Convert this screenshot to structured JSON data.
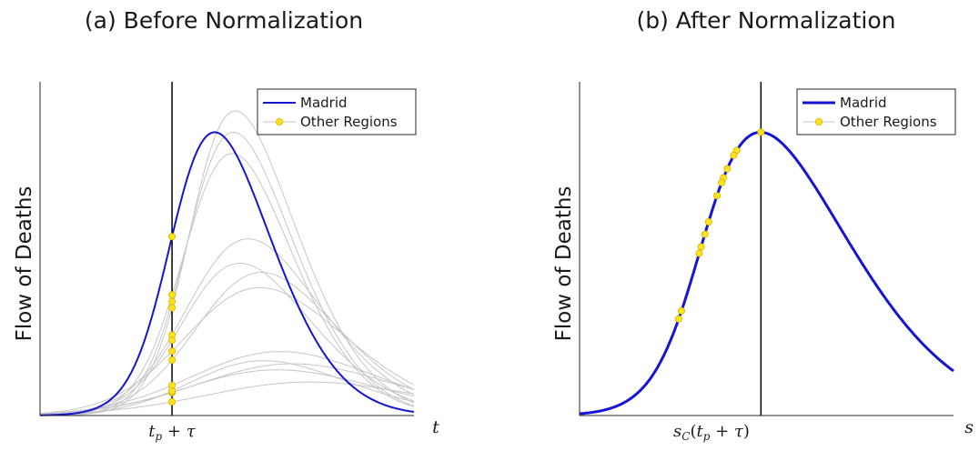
{
  "chart_data": [
    {
      "type": "line",
      "title": "(a) Before Normalization",
      "ylabel": "Flow of Deaths",
      "xlabel": "t",
      "xtick_label": "t_p + τ",
      "legend": {
        "placement": "top-right",
        "entries": [
          "Madrid",
          "Other Regions"
        ]
      },
      "colors": {
        "madrid": "#1414d2",
        "others": "#c6c6c6",
        "markers": "#ffe21a",
        "marker_edge": "#d4b400",
        "vline": "#000000"
      },
      "madrid": {
        "mu": 0.36,
        "sigma": 0.21,
        "skew": 2.0,
        "peak": 0.93
      },
      "others": [
        {
          "mu": 0.41,
          "sigma": 0.225,
          "skew": 2.2,
          "peak": 1.0
        },
        {
          "mu": 0.405,
          "sigma": 0.22,
          "skew": 2.0,
          "peak": 0.93
        },
        {
          "mu": 0.4,
          "sigma": 0.22,
          "skew": 1.8,
          "peak": 0.86
        },
        {
          "mu": 0.42,
          "sigma": 0.26,
          "skew": 1.6,
          "peak": 0.58
        },
        {
          "mu": 0.45,
          "sigma": 0.27,
          "skew": 1.5,
          "peak": 0.47
        },
        {
          "mu": 0.43,
          "sigma": 0.3,
          "skew": 1.4,
          "peak": 0.42
        },
        {
          "mu": 0.4,
          "sigma": 0.26,
          "skew": 1.8,
          "peak": 0.5
        },
        {
          "mu": 0.47,
          "sigma": 0.33,
          "skew": 1.2,
          "peak": 0.21
        },
        {
          "mu": 0.5,
          "sigma": 0.34,
          "skew": 1.1,
          "peak": 0.17
        },
        {
          "mu": 0.45,
          "sigma": 0.35,
          "skew": 1.3,
          "peak": 0.15
        },
        {
          "mu": 0.53,
          "sigma": 0.37,
          "skew": 1.1,
          "peak": 0.11
        },
        {
          "mu": 0.44,
          "sigma": 0.3,
          "skew": 1.5,
          "peak": 0.18
        }
      ]
    },
    {
      "type": "line",
      "title": "(b) After Normalization",
      "ylabel": "Flow of Deaths",
      "xlabel": "s",
      "xtick_label": "s_C(t_p + τ)",
      "legend": {
        "placement": "top-right",
        "entries": [
          "Madrid",
          "Other Regions"
        ]
      },
      "madrid": {
        "mu": 0.33,
        "sigma": 0.33,
        "skew": 2.8,
        "peak": 0.93
      },
      "marker_y": [
        0.93,
        0.87,
        0.85,
        0.81,
        0.78,
        0.76,
        0.72,
        0.63,
        0.59,
        0.55,
        0.53,
        0.34,
        0.31
      ]
    }
  ]
}
